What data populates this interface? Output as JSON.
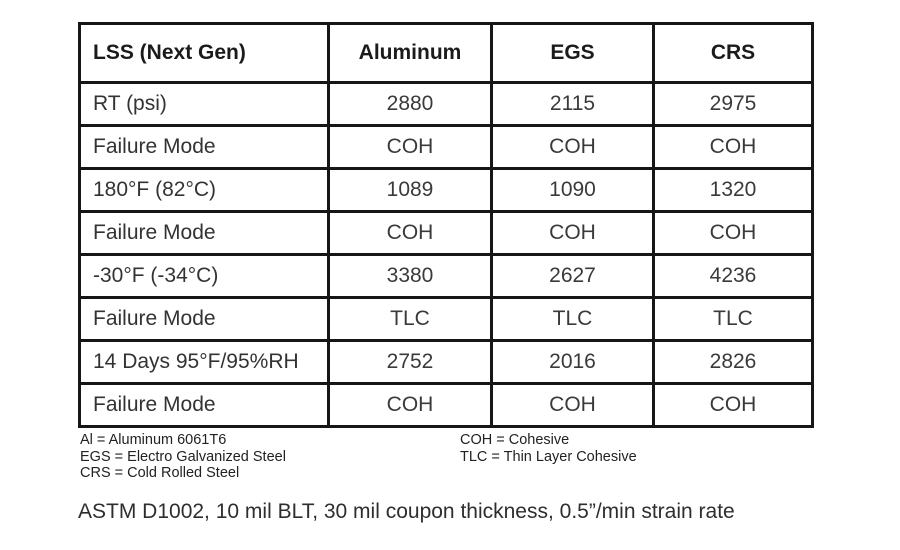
{
  "table": {
    "headers": [
      "LSS (Next Gen)",
      "Aluminum",
      "EGS",
      "CRS"
    ],
    "rows": [
      {
        "label": "RT (psi)",
        "values": [
          "2880",
          "2115",
          "2975"
        ]
      },
      {
        "label": "Failure Mode",
        "values": [
          "COH",
          "COH",
          "COH"
        ]
      },
      {
        "label": "180°F (82°C)",
        "values": [
          "1089",
          "1090",
          "1320"
        ]
      },
      {
        "label": "Failure Mode",
        "values": [
          "COH",
          "COH",
          "COH"
        ]
      },
      {
        "label": "-30°F (-34°C)",
        "values": [
          "3380",
          "2627",
          "4236"
        ]
      },
      {
        "label": "Failure Mode",
        "values": [
          "TLC",
          "TLC",
          "TLC"
        ]
      },
      {
        "label": "14 Days 95°F/95%RH",
        "values": [
          "2752",
          "2016",
          "2826"
        ]
      },
      {
        "label": "Failure Mode",
        "values": [
          "COH",
          "COH",
          "COH"
        ]
      }
    ]
  },
  "legend": {
    "left": [
      "Al = Aluminum 6061T6",
      "EGS = Electro Galvanized Steel",
      "CRS = Cold Rolled Steel"
    ],
    "right": [
      "COH = Cohesive",
      "TLC = Thin Layer Cohesive"
    ]
  },
  "footer": {
    "note": "ASTM D1002, 10 mil BLT, 30 mil coupon thickness, 0.5”/min strain rate"
  },
  "colors": {
    "border": "#161616",
    "header_text": "#1b1b1b",
    "cell_text": "#3a3a3a",
    "background": "#ffffff"
  }
}
